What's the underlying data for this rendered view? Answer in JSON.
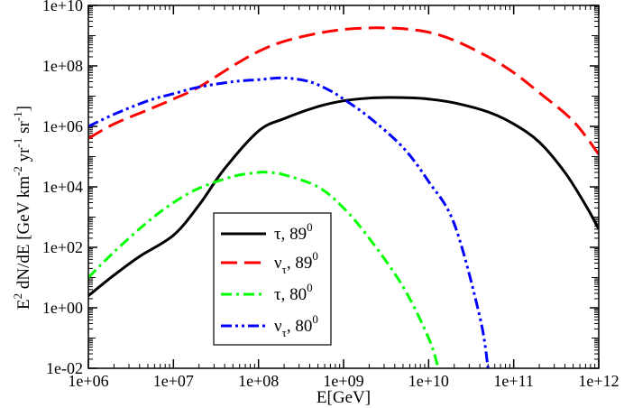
{
  "chart_data": {
    "type": "line",
    "title": "",
    "xlabel": "E[GeV]",
    "ylabel": {
      "parts": [
        "E",
        "2",
        " dN/dE [GeV km",
        "-2",
        " yr",
        "-1",
        " sr",
        "-1",
        "]"
      ]
    },
    "xscale": "log",
    "yscale": "log",
    "xlim": [
      1000000.0,
      1000000000000.0
    ],
    "ylim": [
      0.01,
      10000000000.0
    ],
    "x_ticks": [
      {
        "value": 1000000.0,
        "label": "1e+06"
      },
      {
        "value": 10000000.0,
        "label": "1e+07"
      },
      {
        "value": 100000000.0,
        "label": "1e+08"
      },
      {
        "value": 1000000000.0,
        "label": "1e+09"
      },
      {
        "value": 10000000000.0,
        "label": "1e+10"
      },
      {
        "value": 100000000000.0,
        "label": "1e+11"
      },
      {
        "value": 1000000000000.0,
        "label": "1e+12"
      }
    ],
    "y_ticks": [
      {
        "value": 0.01,
        "label": "1e-02"
      },
      {
        "value": 1,
        "label": "1e+00"
      },
      {
        "value": 100,
        "label": "1e+02"
      },
      {
        "value": 10000.0,
        "label": "1e+04"
      },
      {
        "value": 1000000.0,
        "label": "1e+06"
      },
      {
        "value": 100000000.0,
        "label": "1e+08"
      },
      {
        "value": 10000000000.0,
        "label": "1e+10"
      }
    ],
    "legend_position": "bottom-left-center",
    "series": [
      {
        "name": "tau-89",
        "label_main": "τ, 89",
        "label_sub": "",
        "label_sup": "0",
        "color": "#000000",
        "dash": "solid",
        "x": [
          1000000.0,
          2000000.0,
          4000000.0,
          10000000.0,
          20000000.0,
          40000000.0,
          100000000.0,
          200000000.0,
          500000000.0,
          1000000000.0,
          2000000000.0,
          3500000000.0,
          6000000000.0,
          10000000000.0,
          20000000000.0,
          50000000000.0,
          100000000000.0,
          200000000000.0,
          400000000000.0,
          700000000000.0,
          1000000000000.0
        ],
        "y": [
          2.5,
          12,
          50,
          250,
          2500,
          40000,
          700000,
          1800000,
          4500000,
          7000000,
          8600000,
          9000000,
          8800000,
          8000000,
          6000000,
          3000000,
          1200000,
          300000,
          30000,
          2500,
          400
        ]
      },
      {
        "name": "nutau-89",
        "label_main": "ν",
        "label_sub": "τ",
        "label_sup": "0",
        "label_mid": ", 89",
        "color": "#ff0000",
        "dash": "long",
        "x": [
          1000000.0,
          2000000.0,
          5000000.0,
          10000000.0,
          20000000.0,
          50000000.0,
          100000000.0,
          200000000.0,
          500000000.0,
          1000000000.0,
          2000000000.0,
          3000000000.0,
          5000000000.0,
          10000000000.0,
          20000000000.0,
          50000000000.0,
          100000000000.0,
          200000000000.0,
          500000000000.0,
          1000000000000.0
        ],
        "y": [
          400000,
          1200000,
          3500000,
          8000000,
          20000000,
          100000000,
          300000000,
          650000000,
          1200000000,
          1600000000,
          1800000000,
          1800000000,
          1700000000,
          1300000000,
          700000000,
          200000000,
          60000000,
          13000000,
          1500000,
          120000
        ]
      },
      {
        "name": "tau-80",
        "label_main": "τ, 80",
        "label_sub": "",
        "label_sup": "0",
        "color": "#00ff00",
        "dash": "dashdot",
        "x": [
          1000000.0,
          2000000.0,
          5000000.0,
          10000000.0,
          20000000.0,
          50000000.0,
          100000000.0,
          130000000.0,
          200000000.0,
          500000000.0,
          1000000000.0,
          2000000000.0,
          5000000000.0,
          10000000000.0,
          13000000000.0
        ],
        "y": [
          10,
          70,
          700,
          3000,
          9000,
          22000,
          30000,
          30000,
          25000,
          10000,
          2000,
          200,
          5,
          0.1,
          0.01
        ]
      },
      {
        "name": "nutau-80",
        "label_main": "ν",
        "label_sub": "τ",
        "label_sup": "0",
        "label_mid": ", 80",
        "color": "#0000ff",
        "dash": "dashdotdot",
        "x": [
          1000000.0,
          2000000.0,
          5000000.0,
          10000000.0,
          20000000.0,
          50000000.0,
          100000000.0,
          200000000.0,
          400000000.0,
          700000000.0,
          1000000000.0,
          2000000000.0,
          5000000000.0,
          10000000000.0,
          20000000000.0,
          40000000000.0,
          50000000000.0
        ],
        "y": [
          1000000,
          2500000,
          7000000,
          12000000,
          20000000,
          30000000,
          35000000,
          40000000,
          30000000,
          15000000,
          8000000,
          2000000,
          200000,
          15000,
          600,
          0.5,
          0.01
        ]
      }
    ]
  }
}
